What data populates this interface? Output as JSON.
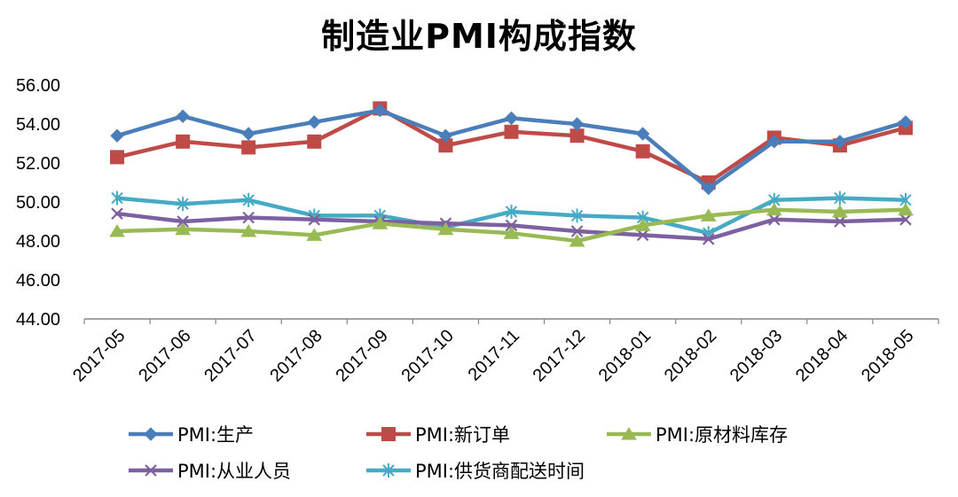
{
  "chart_data": {
    "type": "line",
    "title": "制造业PMI构成指数",
    "categories": [
      "2017-05",
      "2017-06",
      "2017-07",
      "2017-08",
      "2017-09",
      "2017-10",
      "2017-11",
      "2017-12",
      "2018-01",
      "2018-02",
      "2018-03",
      "2018-04",
      "2018-05"
    ],
    "y_ticks": [
      "44.00",
      "46.00",
      "48.00",
      "50.00",
      "52.00",
      "54.00",
      "56.00"
    ],
    "ylim": [
      44,
      56
    ],
    "grid": false,
    "legend_position": "bottom",
    "series": [
      {
        "name": "PMI:生产",
        "color": "#4a7ebb",
        "marker": "diamond",
        "values": [
          53.4,
          54.4,
          53.5,
          54.1,
          54.7,
          53.4,
          54.3,
          54.0,
          53.5,
          50.7,
          53.1,
          53.1,
          54.1
        ]
      },
      {
        "name": "PMI:新订单",
        "color": "#be4b48",
        "marker": "square",
        "values": [
          52.3,
          53.1,
          52.8,
          53.1,
          54.8,
          52.9,
          53.6,
          53.4,
          52.6,
          51.0,
          53.3,
          52.9,
          53.8
        ]
      },
      {
        "name": "PMI:原材料库存",
        "color": "#98b954",
        "marker": "triangle",
        "values": [
          48.5,
          48.6,
          48.5,
          48.3,
          48.9,
          48.6,
          48.4,
          48.0,
          48.8,
          49.3,
          49.6,
          49.5,
          49.6
        ]
      },
      {
        "name": "PMI:从业人员",
        "color": "#7d60a0",
        "marker": "x",
        "values": [
          49.4,
          49.0,
          49.2,
          49.1,
          49.0,
          48.9,
          48.8,
          48.5,
          48.3,
          48.1,
          49.1,
          49.0,
          49.1
        ]
      },
      {
        "name": "PMI:供货商配送时间",
        "color": "#46aac5",
        "marker": "star",
        "values": [
          50.2,
          49.9,
          50.1,
          49.3,
          49.3,
          48.7,
          49.5,
          49.3,
          49.2,
          48.4,
          50.1,
          50.2,
          50.1
        ]
      }
    ]
  }
}
